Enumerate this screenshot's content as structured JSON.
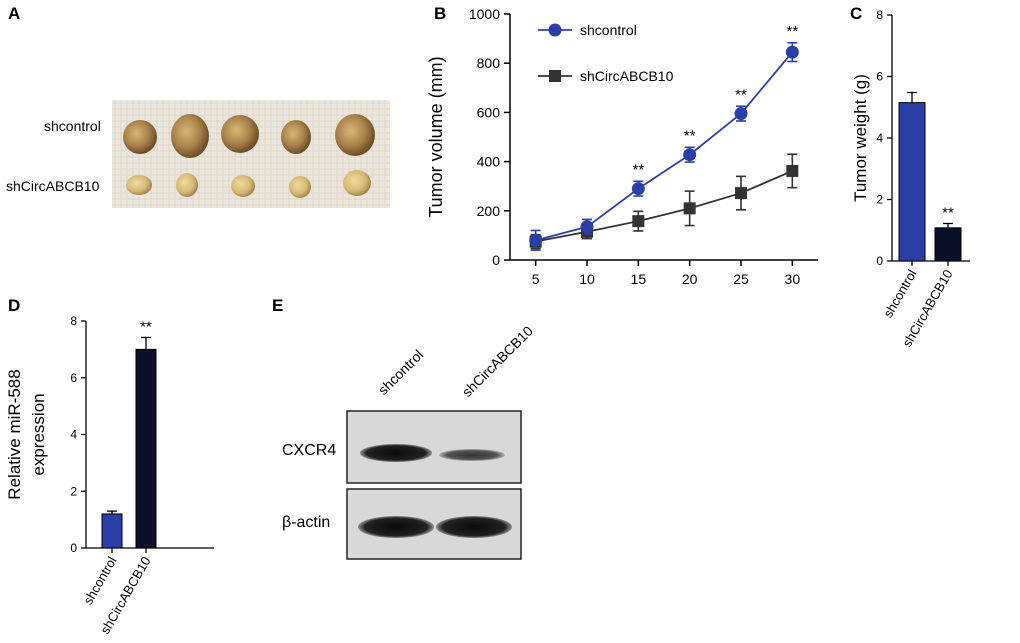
{
  "colors": {
    "shcontrol": "#2b3ea8",
    "shCircABCB10_line": "#333333",
    "shCircABCB10_bar": "#0b0f2a",
    "axis": "#000000"
  },
  "panels": {
    "A": {
      "letter": "A",
      "row_labels": [
        "shcontrol",
        "shCircABCB10"
      ]
    },
    "E": {
      "letter": "E",
      "lanes": [
        "shcontrol",
        "shCircABCB10"
      ],
      "blots": [
        "CXCR4",
        "β-actin"
      ]
    }
  },
  "chart_data": [
    {
      "panel": "B",
      "type": "line",
      "ylabel": "Tumor volume (mm)",
      "xlabel": "",
      "x": [
        5,
        10,
        15,
        20,
        25,
        30
      ],
      "xticks": [
        "5",
        "10",
        "15",
        "20",
        "25",
        "30"
      ],
      "ylim": [
        0,
        1000
      ],
      "yticks": [
        "0",
        "200",
        "400",
        "600",
        "800",
        "1000"
      ],
      "legend": "top-left",
      "series": [
        {
          "name": "shcontrol",
          "marker": "circle",
          "values": [
            80,
            135,
            290,
            428,
            595,
            845
          ],
          "errors": [
            40,
            30,
            30,
            30,
            30,
            38
          ]
        },
        {
          "name": "shCircABCB10",
          "marker": "square",
          "values": [
            75,
            115,
            158,
            210,
            272,
            362
          ],
          "errors": [
            28,
            28,
            40,
            70,
            68,
            68
          ]
        }
      ],
      "annotations": [
        {
          "x": 15,
          "text": "**"
        },
        {
          "x": 20,
          "text": "**"
        },
        {
          "x": 25,
          "text": "**"
        },
        {
          "x": 30,
          "text": "**"
        }
      ]
    },
    {
      "panel": "C",
      "type": "bar",
      "ylabel": "Tumor weight (g)",
      "categories": [
        "shcontrol",
        "shCircABCB10"
      ],
      "values": [
        5.15,
        1.08
      ],
      "errors": [
        0.33,
        0.14
      ],
      "ylim": [
        0,
        8
      ],
      "yticks": [
        "0",
        "2",
        "4",
        "6",
        "8"
      ],
      "annotations": [
        {
          "category": "shCircABCB10",
          "text": "**"
        }
      ]
    },
    {
      "panel": "D",
      "type": "bar",
      "ylabel_line1": "Relative  miR-588",
      "ylabel_line2": "expression",
      "categories": [
        "shcontrol",
        "shCircABCB10"
      ],
      "values": [
        1.2,
        7.0
      ],
      "errors": [
        0.1,
        0.42
      ],
      "ylim": [
        0,
        8
      ],
      "yticks": [
        "0",
        "2",
        "4",
        "6",
        "8"
      ],
      "annotations": [
        {
          "category": "shCircABCB10",
          "text": "**"
        }
      ]
    }
  ]
}
